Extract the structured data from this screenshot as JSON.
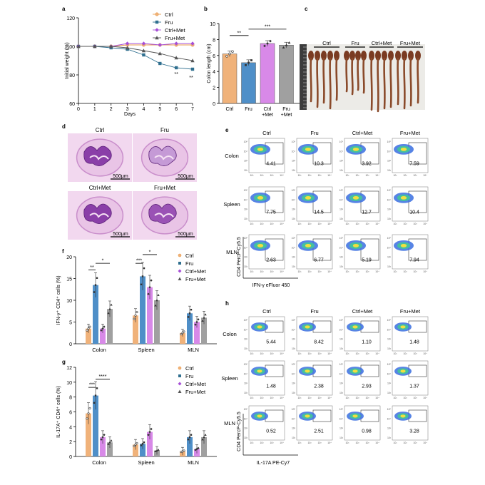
{
  "panel_letters": [
    "a",
    "b",
    "c",
    "d",
    "e",
    "f",
    "g",
    "h"
  ],
  "colors": {
    "ctrl": "#f0b27a",
    "fru": "#4f8fc8",
    "ctrlmet": "#d889e8",
    "frumet": "#a0a0a0",
    "ctrl_line": "#e89a4a",
    "fru_line": "#2f6f8f",
    "ctrlmet_line": "#a64fd6",
    "frumet_line": "#555555"
  },
  "panel_a": {
    "chart_data": {
      "type": "line",
      "x": [
        0,
        1,
        2,
        3,
        4,
        5,
        6,
        7
      ],
      "xlabel": "Days",
      "ylabel": "Initial weight (%)",
      "ylim": [
        60,
        120
      ],
      "yticks": [
        60,
        80,
        100,
        120
      ],
      "series": [
        {
          "name": "Ctrl",
          "values": [
            100,
            100,
            100,
            101,
            101,
            101,
            101,
            101
          ]
        },
        {
          "name": "Fru",
          "values": [
            100,
            100,
            99,
            98,
            94,
            88,
            85,
            84
          ]
        },
        {
          "name": "Ctrl+Met",
          "values": [
            100,
            100,
            100,
            102,
            102,
            101,
            102,
            102
          ]
        },
        {
          "name": "Fru+Met",
          "values": [
            100,
            100,
            100,
            99,
            97,
            95,
            92,
            90
          ]
        }
      ],
      "annotations": [
        "**",
        "**"
      ]
    }
  },
  "panel_b": {
    "chart_data": {
      "type": "bar",
      "categories": [
        "Ctrl",
        "Fru",
        "Ctrl\n+Met",
        "Fru\n+Met"
      ],
      "category_lines": [
        [
          "Ctrl"
        ],
        [
          "Fru"
        ],
        [
          "Ctrl",
          "+Met"
        ],
        [
          "Fru",
          "+Met"
        ]
      ],
      "values": [
        6.2,
        5.1,
        7.5,
        7.3
      ],
      "ylabel": "Colon length (cm)",
      "ylim": [
        0,
        10
      ],
      "yticks": [
        0,
        2,
        4,
        6,
        8,
        10
      ],
      "annotations": [
        "**",
        "***"
      ]
    }
  },
  "panel_c": {
    "labels": [
      "Ctrl",
      "Fru",
      "Ctrl+Met",
      "Fru+Met"
    ]
  },
  "panel_d": {
    "labels": [
      "Ctrl",
      "Fru",
      "Ctrl+Met",
      "Fru+Met"
    ],
    "scale_bar": "500μm"
  },
  "panel_e": {
    "columns": [
      "Ctrl",
      "Fru",
      "Ctrl+Met",
      "Fru+Met"
    ],
    "rows": [
      {
        "label": "Colon",
        "values": [
          "4.41",
          "10.3",
          "3.92",
          "7.59"
        ]
      },
      {
        "label": "Spleen",
        "values": [
          "7.75",
          "14.5",
          "12.7",
          "10.4"
        ]
      },
      {
        "label": "MLN",
        "values": [
          "2.63",
          "6.77",
          "5.19",
          "7.94"
        ]
      }
    ],
    "ylabel": "CD4 PercP-Cy5.5",
    "xlabel": "IFN-γ eFluor 450"
  },
  "panel_f": {
    "chart_data": {
      "type": "bar",
      "categories": [
        "Colon",
        "Spleen",
        "MLN"
      ],
      "series": [
        {
          "name": "Ctrl",
          "values": [
            3.5,
            6.5,
            2.5
          ]
        },
        {
          "name": "Fru",
          "values": [
            13.5,
            15.5,
            7
          ]
        },
        {
          "name": "Ctrl+Met",
          "values": [
            3.5,
            13,
            5
          ]
        },
        {
          "name": "Fru+Met",
          "values": [
            8,
            10,
            6
          ]
        }
      ],
      "ylabel": "IFN-γ⁺ CD4⁺ cells (%)",
      "ylim": [
        0,
        20
      ],
      "yticks": [
        0,
        5,
        10,
        15,
        20
      ],
      "annotations": [
        "**",
        "*",
        "***",
        "*"
      ]
    }
  },
  "panel_g": {
    "chart_data": {
      "type": "bar",
      "categories": [
        "Colon",
        "Spleen",
        "MLN"
      ],
      "series": [
        {
          "name": "Ctrl",
          "values": [
            5.8,
            1.6,
            0.7
          ]
        },
        {
          "name": "Fru",
          "values": [
            8.2,
            1.7,
            2.6
          ]
        },
        {
          "name": "Ctrl+Met",
          "values": [
            2.6,
            3.3,
            1.0
          ]
        },
        {
          "name": "Fru+Met",
          "values": [
            1.9,
            0.8,
            2.6
          ]
        }
      ],
      "ylabel": "IL-17A⁺ CD4⁺ cells (%)",
      "ylim": [
        0,
        12
      ],
      "yticks": [
        0,
        2,
        4,
        6,
        8,
        10,
        12
      ],
      "annotations": [
        "***",
        "****"
      ]
    }
  },
  "panel_h": {
    "columns": [
      "Ctrl",
      "Fru",
      "Ctrl+Met",
      "Fru+Met"
    ],
    "rows": [
      {
        "label": "Colon",
        "values": [
          "5.44",
          "8.42",
          "1.10",
          "1.48"
        ]
      },
      {
        "label": "Spleen",
        "values": [
          "1.48",
          "2.38",
          "2.93",
          "1.37"
        ]
      },
      {
        "label": "MLN",
        "values": [
          "0.52",
          "2.51",
          "0.98",
          "3.28"
        ]
      }
    ],
    "ylabel": "CD4 PercP-Cy5.5",
    "xlabel": "IL-17A PE-Cy7"
  }
}
